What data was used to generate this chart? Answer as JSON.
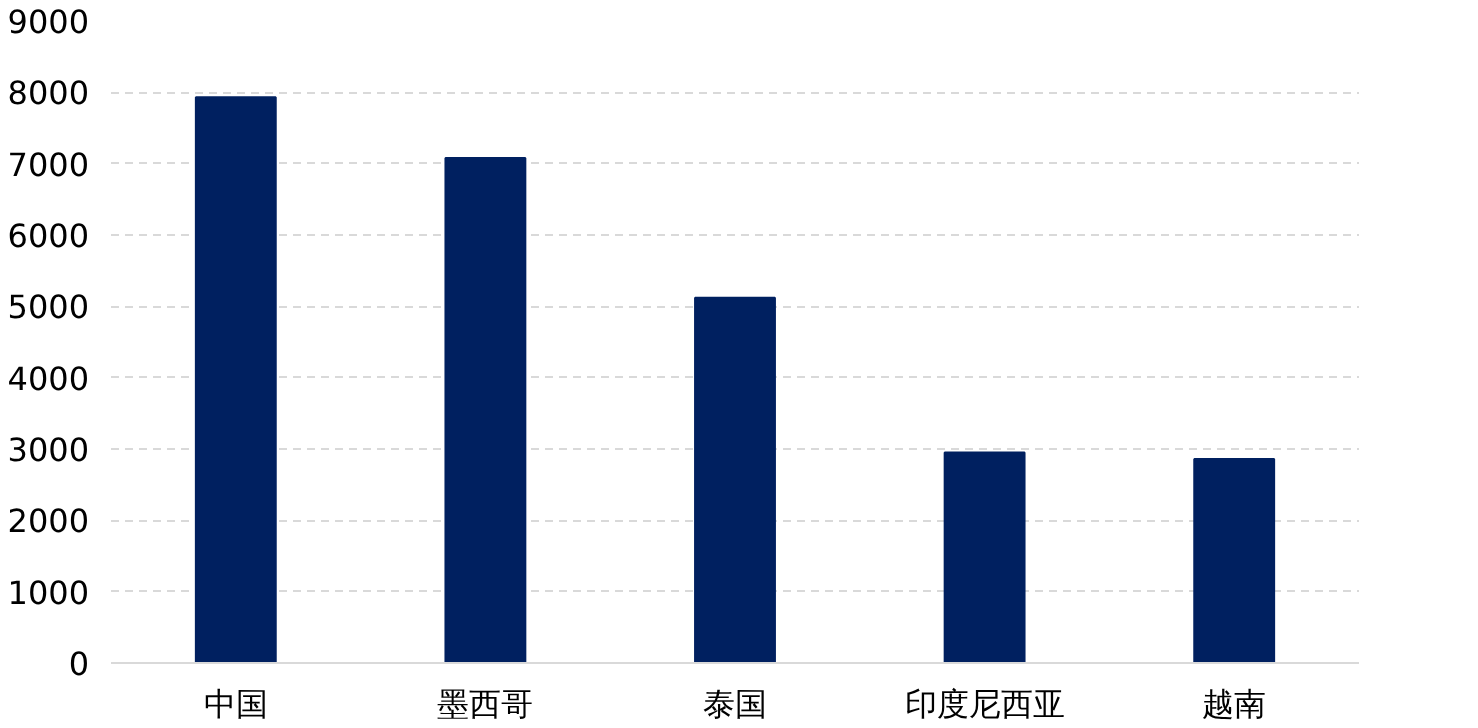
{
  "chart_data": {
    "type": "bar",
    "categories": [
      "中国",
      "墨西哥",
      "泰国",
      "印度尼西亚",
      "越南"
    ],
    "values": [
      7930,
      7080,
      5120,
      2950,
      2860
    ],
    "color": "#002060",
    "ylim": [
      0,
      9000
    ],
    "yticks": [
      0,
      1000,
      2000,
      3000,
      4000,
      5000,
      6000,
      7000,
      8000,
      9000
    ],
    "grid": "y"
  }
}
